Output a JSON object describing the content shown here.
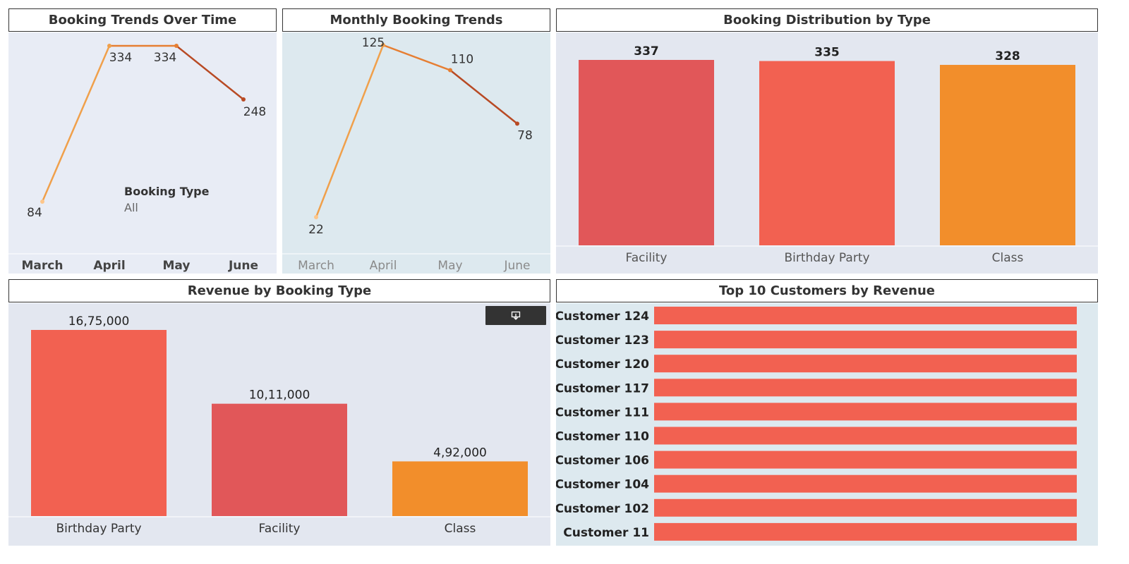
{
  "panels": {
    "trends": {
      "title": "Booking Trends Over Time"
    },
    "monthly": {
      "title": "Monthly Booking Trends"
    },
    "distribution": {
      "title": "Booking Distribution by Type"
    },
    "revenue": {
      "title": "Revenue by Booking Type"
    },
    "customers": {
      "title": "Top  10 Customers by Revenue"
    }
  },
  "filter": {
    "label": "Booking Type",
    "value": "All"
  },
  "download_icon": "download-icon",
  "chart_data": [
    {
      "id": "trends",
      "type": "line",
      "title": "Booking Trends Over Time",
      "categories": [
        "March",
        "April",
        "May",
        "June"
      ],
      "values": [
        84,
        334,
        334,
        248
      ],
      "data_labels": [
        "84",
        "334",
        "334",
        "248"
      ],
      "ylim": [
        84,
        334
      ],
      "colors": [
        "#fdc68a",
        "#f0a04b",
        "#e67e32",
        "#b84a24"
      ]
    },
    {
      "id": "monthly",
      "type": "line",
      "title": "Monthly Booking Trends",
      "categories": [
        "March",
        "April",
        "May",
        "June"
      ],
      "values": [
        22,
        125,
        110,
        78
      ],
      "data_labels": [
        "22",
        "125",
        "110",
        "78"
      ],
      "ylim": [
        22,
        125
      ],
      "colors": [
        "#fdc68a",
        "#f0a04b",
        "#e67e32",
        "#b84a24"
      ]
    },
    {
      "id": "distribution",
      "type": "bar",
      "title": "Booking Distribution by Type",
      "categories": [
        "Facility",
        "Birthday Party",
        "Class"
      ],
      "values": [
        337,
        335,
        328
      ],
      "data_labels": [
        "337",
        "335",
        "328"
      ],
      "ylim": [
        0,
        337
      ],
      "colors": [
        "#e15759",
        "#f26151",
        "#f28e2b"
      ]
    },
    {
      "id": "revenue",
      "type": "bar",
      "title": "Revenue by Booking Type",
      "categories": [
        "Birthday Party",
        "Facility",
        "Class"
      ],
      "values": [
        1675000,
        1011000,
        492000
      ],
      "data_labels": [
        "16,75,000",
        "10,11,000",
        "4,92,000"
      ],
      "ylim": [
        0,
        1675000
      ],
      "colors": [
        "#f26151",
        "#e15759",
        "#f28e2b"
      ]
    },
    {
      "id": "customers",
      "type": "bar",
      "orientation": "horizontal",
      "title": "Top  10 Customers by Revenue",
      "categories": [
        "Customer 124",
        "Customer 123",
        "Customer 120",
        "Customer 117",
        "Customer 111",
        "Customer 110",
        "Customer 106",
        "Customer 104",
        "Customer 102",
        "Customer 11"
      ],
      "values": [
        1,
        1,
        1,
        1,
        1,
        1,
        1,
        1,
        1,
        1
      ],
      "xlim": [
        0,
        1
      ],
      "colors": [
        "#f26151"
      ]
    }
  ]
}
